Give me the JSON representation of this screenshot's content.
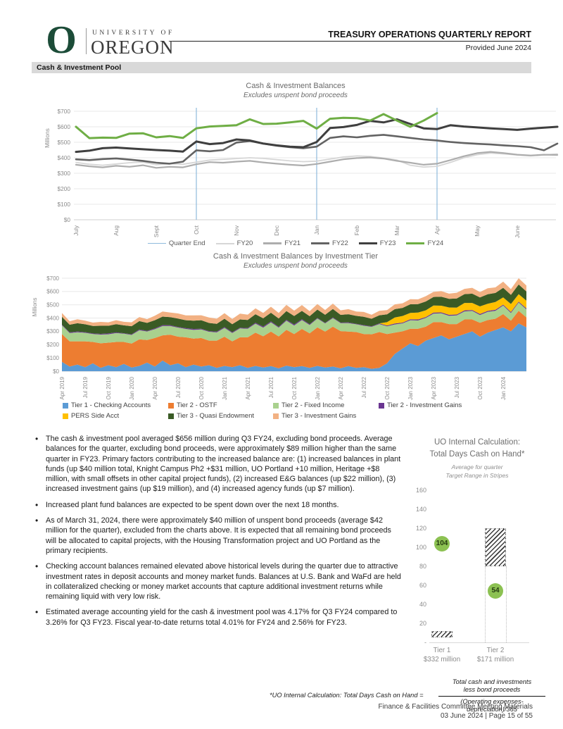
{
  "header": {
    "brand": {
      "logo_letter": "O",
      "university_of": "UNIVERSITY OF",
      "oregon": "OREGON"
    },
    "title": "TREASURY OPERATIONS QUARTERLY REPORT",
    "provided": "Provided June 2024"
  },
  "section": {
    "title": "Cash & Investment Pool"
  },
  "chart_data": [
    {
      "type": "line",
      "title": "Cash & Investment Balances",
      "subtitle": "Excludes unspent bond proceeds",
      "ylabel": "Millions",
      "ylim": [
        0,
        700
      ],
      "ytick_labels": [
        "$0",
        "$100",
        "$200",
        "$300",
        "$400",
        "$500",
        "$600",
        "$700"
      ],
      "x_months": [
        "July",
        "Aug",
        "Sept",
        "Oct",
        "Nov",
        "Dec",
        "Jan",
        "Feb",
        "Mar",
        "Apr",
        "May",
        "June"
      ],
      "quarter_end_months": [
        "Oct",
        "Jan",
        "Apr"
      ],
      "points_per_month": 3,
      "series": [
        {
          "name": "FY20",
          "color": "#d6d6d6",
          "width": 1.8,
          "values": [
            370,
            358,
            352,
            360,
            368,
            372,
            355,
            362,
            358,
            372,
            385,
            390,
            395,
            400,
            396,
            388,
            380,
            375,
            378,
            392,
            405,
            412,
            408,
            398,
            385,
            352,
            340,
            345,
            370,
            400,
            420,
            430,
            425,
            418,
            412,
            418,
            425
          ]
        },
        {
          "name": "FY21",
          "color": "#adadad",
          "width": 2.2,
          "values": [
            355,
            345,
            338,
            348,
            342,
            352,
            335,
            342,
            338,
            358,
            372,
            368,
            375,
            380,
            370,
            362,
            355,
            350,
            360,
            375,
            390,
            398,
            402,
            395,
            380,
            368,
            355,
            362,
            385,
            410,
            430,
            438,
            430,
            420,
            415,
            420,
            418
          ]
        },
        {
          "name": "FY22",
          "color": "#636363",
          "width": 2.6,
          "values": [
            390,
            385,
            392,
            396,
            388,
            380,
            368,
            362,
            375,
            448,
            442,
            450,
            498,
            508,
            492,
            478,
            468,
            462,
            472,
            528,
            538,
            532,
            542,
            548,
            538,
            528,
            518,
            512,
            502,
            495,
            490,
            486,
            480,
            475,
            468,
            448,
            492
          ]
        },
        {
          "name": "FY23",
          "color": "#3f3f3f",
          "width": 3,
          "values": [
            438,
            446,
            462,
            466,
            460,
            455,
            450,
            446,
            440,
            505,
            488,
            495,
            518,
            512,
            492,
            480,
            472,
            468,
            502,
            592,
            598,
            612,
            638,
            628,
            648,
            618,
            590,
            585,
            610,
            602,
            596,
            590,
            585,
            580,
            588,
            594,
            600
          ]
        },
        {
          "name": "FY24",
          "color": "#6fae45",
          "width": 3,
          "values": [
            600,
            527,
            530,
            528,
            556,
            558,
            532,
            540,
            528,
            590,
            602,
            606,
            610,
            648,
            618,
            620,
            628,
            638,
            588,
            652,
            658,
            656,
            640,
            682,
            640,
            600,
            640,
            688
          ]
        }
      ],
      "legend": [
        {
          "label": "Quarter End",
          "color": "#8fbadd",
          "thickness": 1.5
        },
        {
          "label": "FY20",
          "color": "#d6d6d6",
          "thickness": 2
        },
        {
          "label": "FY21",
          "color": "#adadad",
          "thickness": 2.5
        },
        {
          "label": "FY22",
          "color": "#636363",
          "thickness": 3
        },
        {
          "label": "FY23",
          "color": "#3f3f3f",
          "thickness": 3.5
        },
        {
          "label": "FY24",
          "color": "#6fae45",
          "thickness": 3.5
        }
      ]
    },
    {
      "type": "area",
      "title": "Cash & Investment Balances by Investment Tier",
      "subtitle": "Excludes unspent bond proceeds",
      "ylabel": "Millions",
      "ylim": [
        0,
        700
      ],
      "ytick_labels": [
        "$0",
        "$100",
        "$200",
        "$300",
        "$400",
        "$500",
        "$600",
        "$700"
      ],
      "x_tick_labels": [
        "Apr 2019",
        "Jul 2019",
        "Oct 2019",
        "Jan 2020",
        "Apr 2020",
        "Jul 2020",
        "Oct 2020",
        "Jan 2021",
        "Apr 2021",
        "Jul 2021",
        "Oct 2021",
        "Jan 2022",
        "Apr 2022",
        "Jul 2022",
        "Oct 2022",
        "Jan 2023",
        "Apr 2023",
        "Jul 2023",
        "Oct 2023",
        "Jan 2024"
      ],
      "series": [
        {
          "name": "Tier 1 - Checking Accounts",
          "color": "#5b9bd5",
          "values": [
            70,
            35,
            50,
            30,
            60,
            25,
            45,
            30,
            55,
            28,
            40,
            65,
            35,
            80,
            45,
            60,
            30,
            50,
            35,
            45,
            25,
            40,
            30,
            45,
            25,
            40,
            28,
            38,
            22,
            42,
            30,
            38,
            25,
            40,
            28,
            35,
            22,
            38,
            25,
            30,
            18,
            25,
            60,
            130,
            170,
            210,
            190,
            230,
            250,
            270,
            240,
            260,
            280,
            300,
            260,
            290,
            310,
            330,
            300,
            360,
            330
          ]
        },
        {
          "name": "Tier 2 - OSTF",
          "color": "#ed7d31",
          "values": [
            210,
            190,
            175,
            195,
            160,
            185,
            170,
            190,
            165,
            180,
            200,
            170,
            215,
            190,
            230,
            200,
            225,
            195,
            215,
            185,
            205,
            220,
            195,
            210,
            230,
            250,
            235,
            260,
            240,
            270,
            250,
            280,
            260,
            290,
            270,
            300,
            280,
            260,
            270,
            250,
            260,
            270,
            220,
            160,
            130,
            110,
            130,
            105,
            120,
            100,
            115,
            95,
            110,
            90,
            105,
            95,
            85,
            100,
            80,
            95,
            75
          ]
        },
        {
          "name": "Tier 2 - Fixed Income",
          "color": "#a9d18e",
          "values": [
            65,
            62,
            68,
            64,
            60,
            66,
            63,
            67,
            62,
            65,
            68,
            64,
            66,
            70,
            65,
            68,
            63,
            66,
            64,
            67,
            62,
            66,
            63,
            67,
            64,
            68,
            65,
            70,
            66,
            68,
            64,
            67,
            63,
            66,
            62,
            65,
            60,
            64,
            58,
            62,
            56,
            60,
            58,
            62,
            60,
            64,
            62,
            66,
            63,
            66,
            62,
            65,
            60,
            64,
            58,
            62,
            60,
            64,
            58,
            62,
            60
          ]
        },
        {
          "name": "Tier 2 - Investment Gains",
          "color": "#6a3591",
          "values": [
            5,
            5,
            6,
            5,
            4,
            5,
            6,
            5,
            4,
            5,
            6,
            5,
            6,
            7,
            6,
            5,
            6,
            7,
            6,
            5,
            6,
            7,
            6,
            5,
            6,
            7,
            8,
            7,
            6,
            7,
            8,
            7,
            6,
            5,
            4,
            5,
            4,
            5,
            4,
            5,
            4,
            5,
            6,
            7,
            6,
            7,
            8,
            7,
            8,
            7,
            8,
            7,
            8,
            7,
            8,
            7,
            8,
            7,
            8,
            7,
            8
          ]
        },
        {
          "name": "PERS Side Acct",
          "color": "#ffc000",
          "values": [
            0,
            0,
            0,
            0,
            0,
            0,
            0,
            0,
            0,
            0,
            0,
            0,
            0,
            0,
            0,
            0,
            0,
            0,
            0,
            0,
            0,
            0,
            0,
            0,
            0,
            0,
            0,
            0,
            0,
            0,
            0,
            0,
            0,
            0,
            0,
            0,
            0,
            0,
            0,
            0,
            0,
            0,
            25,
            45,
            50,
            48,
            52,
            50,
            54,
            50,
            55,
            52,
            56,
            53,
            57,
            54,
            58,
            55,
            60,
            56,
            58
          ]
        },
        {
          "name": "Tier 3 - Quasi Endowment",
          "color": "#3a5b25",
          "values": [
            60,
            58,
            62,
            59,
            57,
            61,
            58,
            62,
            59,
            61,
            63,
            60,
            62,
            64,
            61,
            63,
            60,
            62,
            64,
            61,
            59,
            62,
            60,
            63,
            61,
            64,
            62,
            65,
            63,
            66,
            64,
            62,
            60,
            63,
            61,
            64,
            58,
            62,
            60,
            63,
            57,
            61,
            59,
            63,
            61,
            65,
            63,
            67,
            64,
            68,
            65,
            69,
            66,
            70,
            67,
            71,
            68,
            72,
            69,
            73,
            70
          ]
        },
        {
          "name": "Tier 3 - Investment Gains",
          "color": "#f2b183",
          "values": [
            28,
            26,
            30,
            27,
            25,
            29,
            26,
            30,
            27,
            29,
            31,
            28,
            34,
            38,
            35,
            39,
            36,
            40,
            37,
            41,
            38,
            42,
            39,
            43,
            40,
            44,
            41,
            45,
            42,
            46,
            40,
            44,
            38,
            42,
            36,
            40,
            34,
            38,
            32,
            36,
            30,
            34,
            32,
            36,
            34,
            38,
            36,
            40,
            38,
            42,
            39,
            43,
            40,
            44,
            41,
            45,
            42,
            46,
            43,
            47,
            44
          ]
        }
      ],
      "legend_rows": [
        [
          {
            "label": "Tier 1 - Checking Accounts",
            "color": "#5b9bd5"
          },
          {
            "label": "Tier 2 - OSTF",
            "color": "#ed7d31"
          },
          {
            "label": "Tier 2 - Fixed Income",
            "color": "#a9d18e"
          },
          {
            "label": "Tier 2 - Investment Gains",
            "color": "#6a3591"
          }
        ],
        [
          {
            "label": "PERS Side Acct",
            "color": "#ffc000"
          },
          {
            "label": "Tier 3 - Quasi Endowment",
            "color": "#3a5b25"
          },
          {
            "label": "Tier 3 - Investment Gains",
            "color": "#f2b183"
          }
        ]
      ]
    },
    {
      "type": "scatter",
      "title_lines": [
        "UO Internal Calculation:",
        "Total Days Cash on Hand*"
      ],
      "subtitle_lines": [
        "Average for quarter",
        "Target Range in Stripes"
      ],
      "ylim": [
        0,
        160
      ],
      "ytick_values": [
        160,
        140,
        120,
        100,
        80,
        60,
        40,
        20
      ],
      "zero_label": "-",
      "marker_color": "#8cc152",
      "categories": [
        {
          "label": "Tier 1",
          "sublabel": "$332 million",
          "value": 104,
          "target_range": [
            5,
            12
          ]
        },
        {
          "label": "Tier 2",
          "sublabel": "$171 million",
          "value": 54,
          "target_range": [
            80,
            120
          ]
        }
      ]
    }
  ],
  "bullets": [
    "The cash & investment pool averaged $656 million during Q3 FY24, excluding bond proceeds.  Average balances for the quarter, excluding bond proceeds, were approximately $89 million higher than the same quarter in FY23. Primary factors contributing to the increased balance are: (1) increased balances in plant funds (up $40 million total, Knight Campus Ph2 +$31 million, UO Portland +10 million, Heritage +$8 million, with small offsets in other capital project funds), (2) increased E&G balances (up $22 million), (3) increased investment gains (up $19 million), and (4) increased agency funds (up $7 million).",
    "Increased plant fund balances are expected to be spent down over the next 18 months.",
    "As of March 31, 2024, there were approximately $40 million of unspent bond proceeds (average $42 million for the quarter), excluded from the charts above. It is expected that all remaining bond proceeds will be allocated to capital projects, with the Housing Transformation project and UO Portland as the primary recipients.",
    "Checking account balances remained elevated above historical levels during the quarter due to attractive investment rates in deposit accounts and money market funds. Balances at U.S. Bank and WaFd are held in collateralized checking or money market accounts that capture additional investment returns while remaining liquid with very low risk.",
    "Estimated average accounting yield for the cash & investment pool was 4.17% for Q3 FY24 compared to 3.26% for Q3 FY23. Fiscal year-to-date returns total 4.01% for FY24 and 2.56% for FY23."
  ],
  "footnote": {
    "prefix": "*UO Internal Calculation: Total Days Cash on Hand =",
    "numerator_line1": "Total cash and investments",
    "numerator_line2": "less bond proceeds",
    "denominator_line1": "(Operating expenses-",
    "denominator_line2": "depreciation)/365"
  },
  "footer": {
    "line1": "Finance & Facilities Committee Meeting Materials",
    "line2": "03 June 2024 | Page 15 of 55"
  }
}
